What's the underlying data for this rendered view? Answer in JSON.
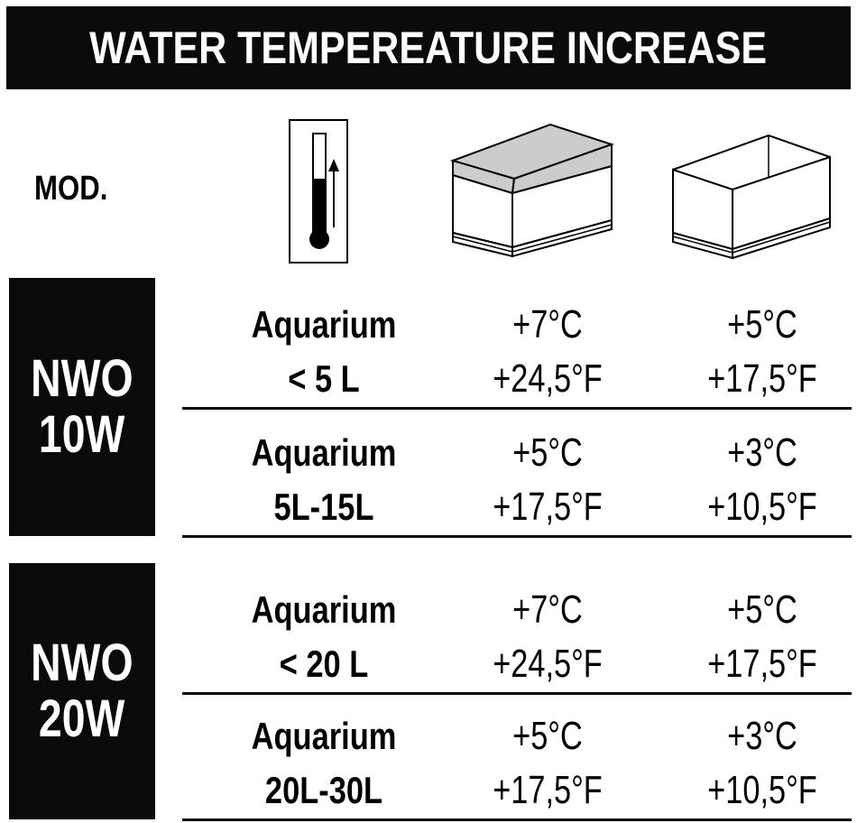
{
  "title": "WATER TEMPEREATURE INCREASE",
  "header": {
    "mod_label": "MOD.",
    "icons": [
      "thermometer-icon",
      "covered-aquarium-icon",
      "open-aquarium-icon"
    ]
  },
  "models": [
    {
      "name_line1": "NWO",
      "name_line2": "10W",
      "rows": [
        {
          "label_line1": "Aquarium",
          "label_line2": "< 5 L",
          "covered_c": "+7°C",
          "covered_f": "+24,5°F",
          "open_c": "+5°C",
          "open_f": "+17,5°F"
        },
        {
          "label_line1": "Aquarium",
          "label_line2": "5L-15L",
          "covered_c": "+5°C",
          "covered_f": "+17,5°F",
          "open_c": "+3°C",
          "open_f": "+10,5°F"
        }
      ]
    },
    {
      "name_line1": "NWO",
      "name_line2": "20W",
      "rows": [
        {
          "label_line1": "Aquarium",
          "label_line2": "< 20 L",
          "covered_c": "+7°C",
          "covered_f": "+24,5°F",
          "open_c": "+5°C",
          "open_f": "+17,5°F"
        },
        {
          "label_line1": "Aquarium",
          "label_line2": "20L-30L",
          "covered_c": "+5°C",
          "covered_f": "+17,5°F",
          "open_c": "+3°C",
          "open_f": "+10,5°F"
        }
      ]
    }
  ]
}
